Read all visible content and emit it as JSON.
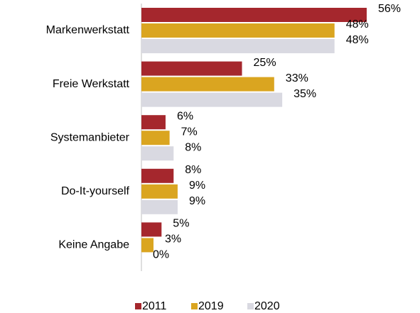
{
  "chart_data": {
    "type": "bar",
    "orientation": "horizontal",
    "categories": [
      "Markenwerkstatt",
      "Freie Werkstatt",
      "Systemanbieter",
      "Do-It-yourself",
      "Keine Angabe"
    ],
    "series": [
      {
        "name": "2011",
        "color": "#a5272d",
        "values": [
          56,
          25,
          6,
          8,
          5
        ],
        "value_labels": [
          "56%",
          "25%",
          "6%",
          "8%",
          "5%"
        ]
      },
      {
        "name": "2019",
        "color": "#daa520",
        "values": [
          48,
          33,
          7,
          9,
          3
        ],
        "value_labels": [
          "48%",
          "33%",
          "7%",
          "9%",
          "3%"
        ]
      },
      {
        "name": "2020",
        "color": "#d9d9e1",
        "values": [
          48,
          35,
          8,
          9,
          0
        ],
        "value_labels": [
          "48%",
          "35%",
          "8%",
          "9%",
          "0%"
        ]
      }
    ],
    "legend": "bottom"
  }
}
